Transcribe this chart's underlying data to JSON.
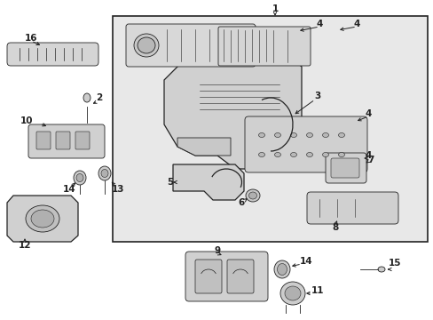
{
  "bg_color": "#ffffff",
  "box_bg": "#e8e8e8",
  "line_color": "#222222",
  "label_fs": 7.5,
  "lw_main": 0.9,
  "lw_thin": 0.6
}
